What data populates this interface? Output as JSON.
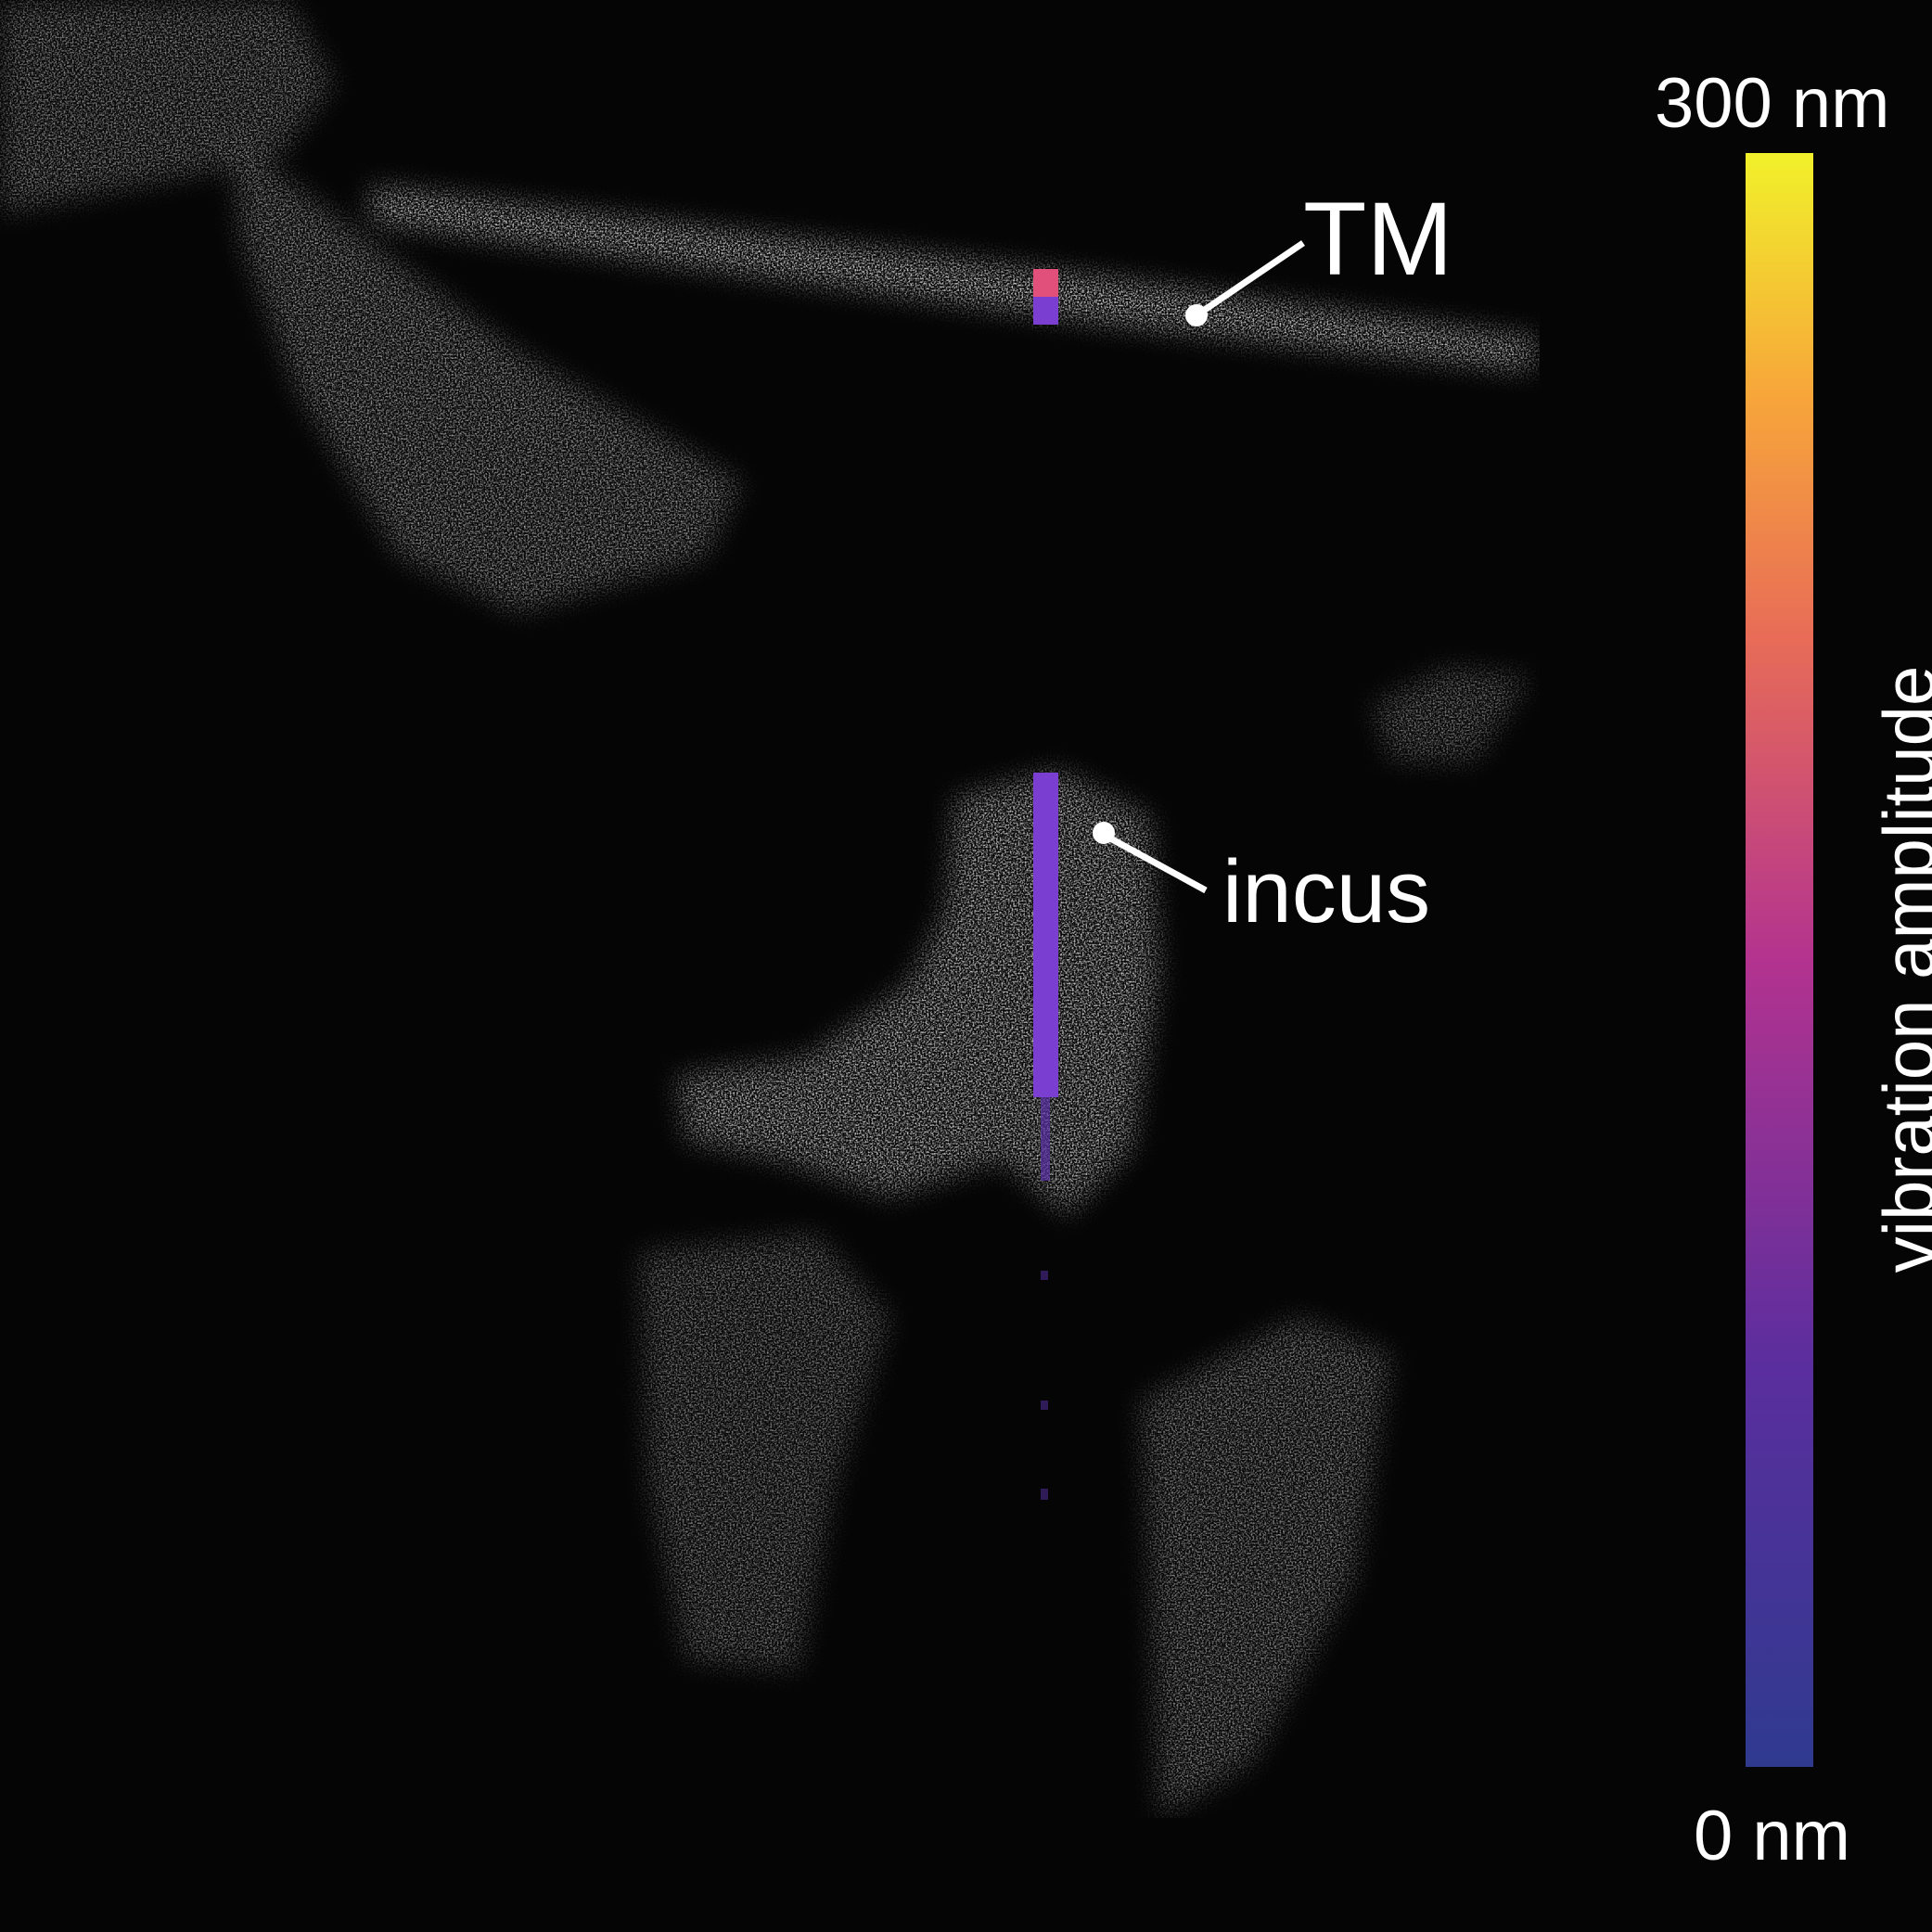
{
  "figure": {
    "labels": {
      "tm": "TM",
      "incus": "incus"
    },
    "colorbar": {
      "title": "vibration amplitude",
      "max_label": "300 nm",
      "min_label": "0 nm",
      "gradient_colors": [
        "#2f3a8f",
        "#5b2e9e",
        "#b3338f",
        "#e86c57",
        "#f7a63a",
        "#f1f12a"
      ]
    },
    "scan_colors": {
      "background": "#050505",
      "tissue": "#ffffff",
      "tm_overlay_top": "#e0507a",
      "overlay_line": "#7a3fd0"
    }
  }
}
